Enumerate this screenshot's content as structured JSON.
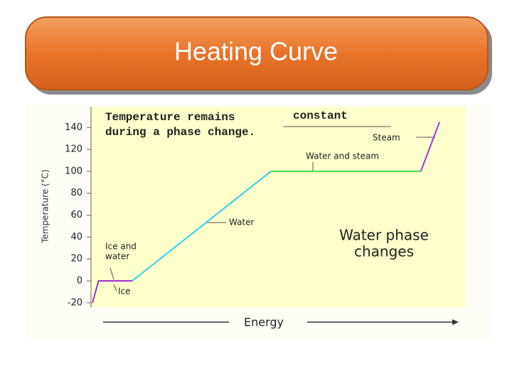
{
  "chart_data": {
    "type": "line",
    "title": "Heating Curve",
    "y_label": "Temperature (°C)",
    "x_label": "Energy",
    "xlim": [
      0,
      100
    ],
    "ylim": [
      -24,
      159
    ],
    "yticks": [
      -20,
      0,
      20,
      40,
      60,
      80,
      100,
      120,
      140
    ],
    "grid": false,
    "series": [
      {
        "color": "#9933cc",
        "x": [
          0.4,
          2,
          11
        ],
        "values": [
          -20,
          0,
          0
        ]
      },
      {
        "color": "#33ccee",
        "x": [
          11,
          48
        ],
        "values": [
          0,
          100
        ]
      },
      {
        "color": "#44dd44",
        "x": [
          48,
          88
        ],
        "values": [
          100,
          100
        ]
      },
      {
        "color": "#aa33dd",
        "x": [
          88,
          93
        ],
        "values": [
          100,
          145
        ]
      }
    ],
    "statement": {
      "lines": [
        "Temperature remains",
        "during a phase change."
      ],
      "blank": "constant"
    },
    "caption": [
      "Water phase",
      "changes"
    ],
    "annotations": [
      {
        "lines": [
          "Ice"
        ]
      },
      {
        "lines": [
          "Ice and",
          "water"
        ]
      },
      {
        "lines": [
          "Water"
        ]
      },
      {
        "lines": [
          "Water and steam"
        ]
      },
      {
        "lines": [
          "Steam"
        ]
      }
    ]
  }
}
